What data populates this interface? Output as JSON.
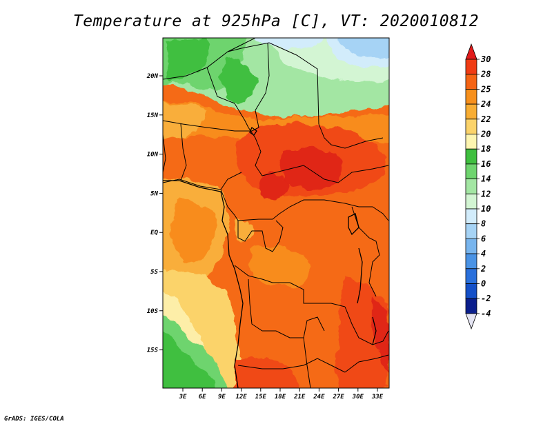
{
  "title": "Temperature at 925hPa [C], VT: 2020010812",
  "footer": "GrADS: IGES/COLA",
  "map": {
    "lat_labels": [
      "20N",
      "15N",
      "10N",
      "5N",
      "EQ",
      "5S",
      "10S",
      "15S"
    ],
    "lon_labels": [
      "3E",
      "6E",
      "9E",
      "12E",
      "15E",
      "18E",
      "21E",
      "24E",
      "27E",
      "30E",
      "33E"
    ]
  },
  "legend": {
    "labels": [
      "30",
      "28",
      "25",
      "24",
      "22",
      "20",
      "18",
      "16",
      "14",
      "12",
      "10",
      "8",
      "6",
      "4",
      "2",
      "0",
      "-2",
      "-4"
    ],
    "colors": [
      "#e11b1b",
      "#f03c14",
      "#f56414",
      "#f7901c",
      "#f8ad33",
      "#fbd36a",
      "#fdf5b0",
      "#3fbf3f",
      "#6ed46e",
      "#a3e6a3",
      "#d3f5d3",
      "#d2ecfb",
      "#a6d3f5",
      "#78b5ee",
      "#4a93e5",
      "#2a70dc",
      "#1450c8",
      "#0a1e8c",
      "#e4e4f2"
    ]
  },
  "colors": {
    "hot_core": "#e02515",
    "very_warm": "#f04a14",
    "warm": "#f56a14",
    "orange": "#f88c1e",
    "light_orange": "#f9ae3a",
    "pale_yellow": "#fbd36a",
    "cream": "#fdeea8",
    "green": "#3fbf3f",
    "mid_green": "#6ed46e",
    "light_green": "#a3e6a3",
    "pale_green": "#d3f5d3",
    "pale_blue": "#d2ecfb",
    "light_blue": "#a6d3f5",
    "blue": "#78b5ee"
  }
}
